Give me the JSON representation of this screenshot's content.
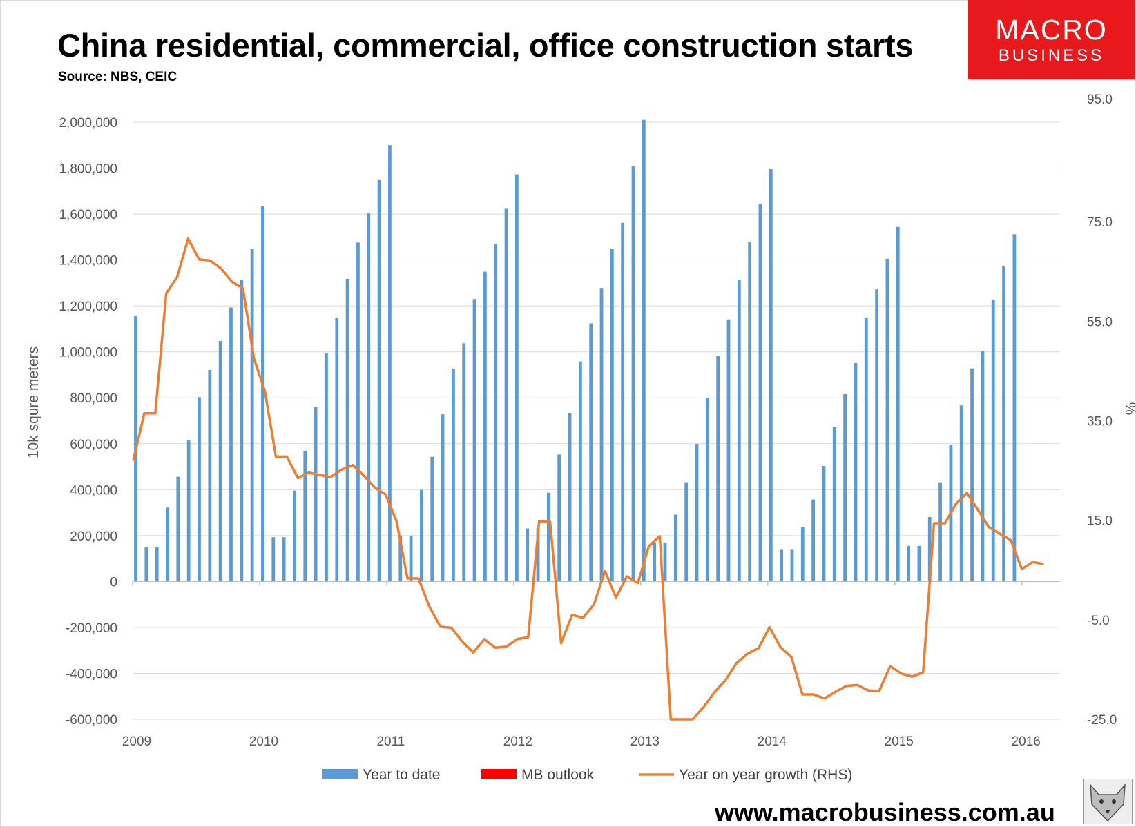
{
  "title": "China residential, commercial, office construction starts",
  "subtitle": "Source: NBS, CEIC",
  "logo": {
    "line1": "MACRO",
    "line2": "BUSINESS",
    "color": "#e8191c"
  },
  "footer_url": "www.macrobusiness.com.au",
  "colors": {
    "bars": "#5b9bd5",
    "line": "#ed7d31",
    "outlook": "#ff0000",
    "grid": "#d9d9d9"
  },
  "chart_data": {
    "type": "bar",
    "title": "China residential, commercial, office construction starts",
    "ylabel": "10k squre meters",
    "y2label": "%",
    "ylim": [
      -600000,
      2000000
    ],
    "y2lim": [
      -25,
      95
    ],
    "y_ticks": [
      "2,000,000",
      "1,800,000",
      "1,600,000",
      "1,400,000",
      "1,200,000",
      "1,000,000",
      "800,000",
      "600,000",
      "400,000",
      "200,000",
      "0",
      "-200,000",
      "-400,000",
      "-600,000"
    ],
    "y2_ticks": [
      "95.0",
      "75.0",
      "55.0",
      "35.0",
      "15.0",
      "-5.0",
      "-25.0"
    ],
    "x_ticks": [
      "2009",
      "2010",
      "2011",
      "2012",
      "2013",
      "2014",
      "2015",
      "2016"
    ],
    "legend": [
      "Year to date",
      "MB outlook",
      "Year on year growth (RHS)"
    ],
    "legend_position": "bottom",
    "grid": true,
    "series": [
      {
        "name": "Year to date",
        "type": "bar",
        "values": [
          1155000,
          150000,
          150000,
          322000,
          456000,
          614000,
          803000,
          921000,
          1047000,
          1193000,
          1315000,
          1449000,
          1636000,
          193000,
          193000,
          396000,
          568000,
          760000,
          993000,
          1150000,
          1318000,
          1476000,
          1603000,
          1748000,
          1900000,
          200000,
          200000,
          399000,
          543000,
          728000,
          924000,
          1037000,
          1230000,
          1349000,
          1468000,
          1623000,
          1773000,
          231000,
          231000,
          387000,
          553000,
          734000,
          958000,
          1124000,
          1278000,
          1449000,
          1562000,
          1808000,
          2010000,
          167000,
          167000,
          291000,
          432000,
          599000,
          800000,
          982000,
          1141000,
          1314000,
          1477000,
          1645000,
          1796000,
          138000,
          138000,
          237000,
          357000,
          503000,
          672000,
          816000,
          951000,
          1149000,
          1272000,
          1405000,
          1544000,
          155000,
          155000,
          281000,
          432000,
          596000,
          767000,
          928000,
          1005000,
          1226000,
          1375000,
          1512000
        ]
      },
      {
        "name": "Year on year growth (RHS)",
        "type": "line",
        "values": [
          27.0,
          36.5,
          36.5,
          60.6,
          63.9,
          71.6,
          67.4,
          67.2,
          65.6,
          62.9,
          61.6,
          47.5,
          40.9,
          27.8,
          27.8,
          23.5,
          24.6,
          24.1,
          23.7,
          25.2,
          26.1,
          24.0,
          21.6,
          20.2,
          14.8,
          3.3,
          3.3,
          -2.4,
          -6.4,
          -6.6,
          -9.4,
          -11.6,
          -8.9,
          -10.6,
          -10.4,
          -8.9,
          -8.5,
          14.8,
          14.7,
          -9.7,
          -4.0,
          -4.6,
          -1.9,
          4.8,
          -0.5,
          3.7,
          2.4,
          9.8,
          11.8,
          -25.0,
          -25.0,
          -25.0,
          -22.5,
          -19.5,
          -17.1,
          -13.7,
          -11.8,
          -10.7,
          -6.5,
          -10.5,
          -12.5,
          -20.0,
          -20.0,
          -20.8,
          -19.5,
          -18.3,
          -18.1,
          -19.2,
          -19.3,
          -14.3,
          -15.8,
          -16.4,
          -15.6,
          14.4,
          14.4,
          18.3,
          20.5,
          17.1,
          13.6,
          12.3,
          11.0,
          5.2,
          6.6,
          6.2
        ]
      },
      {
        "name": "MB outlook",
        "type": "bar",
        "values": []
      }
    ]
  }
}
